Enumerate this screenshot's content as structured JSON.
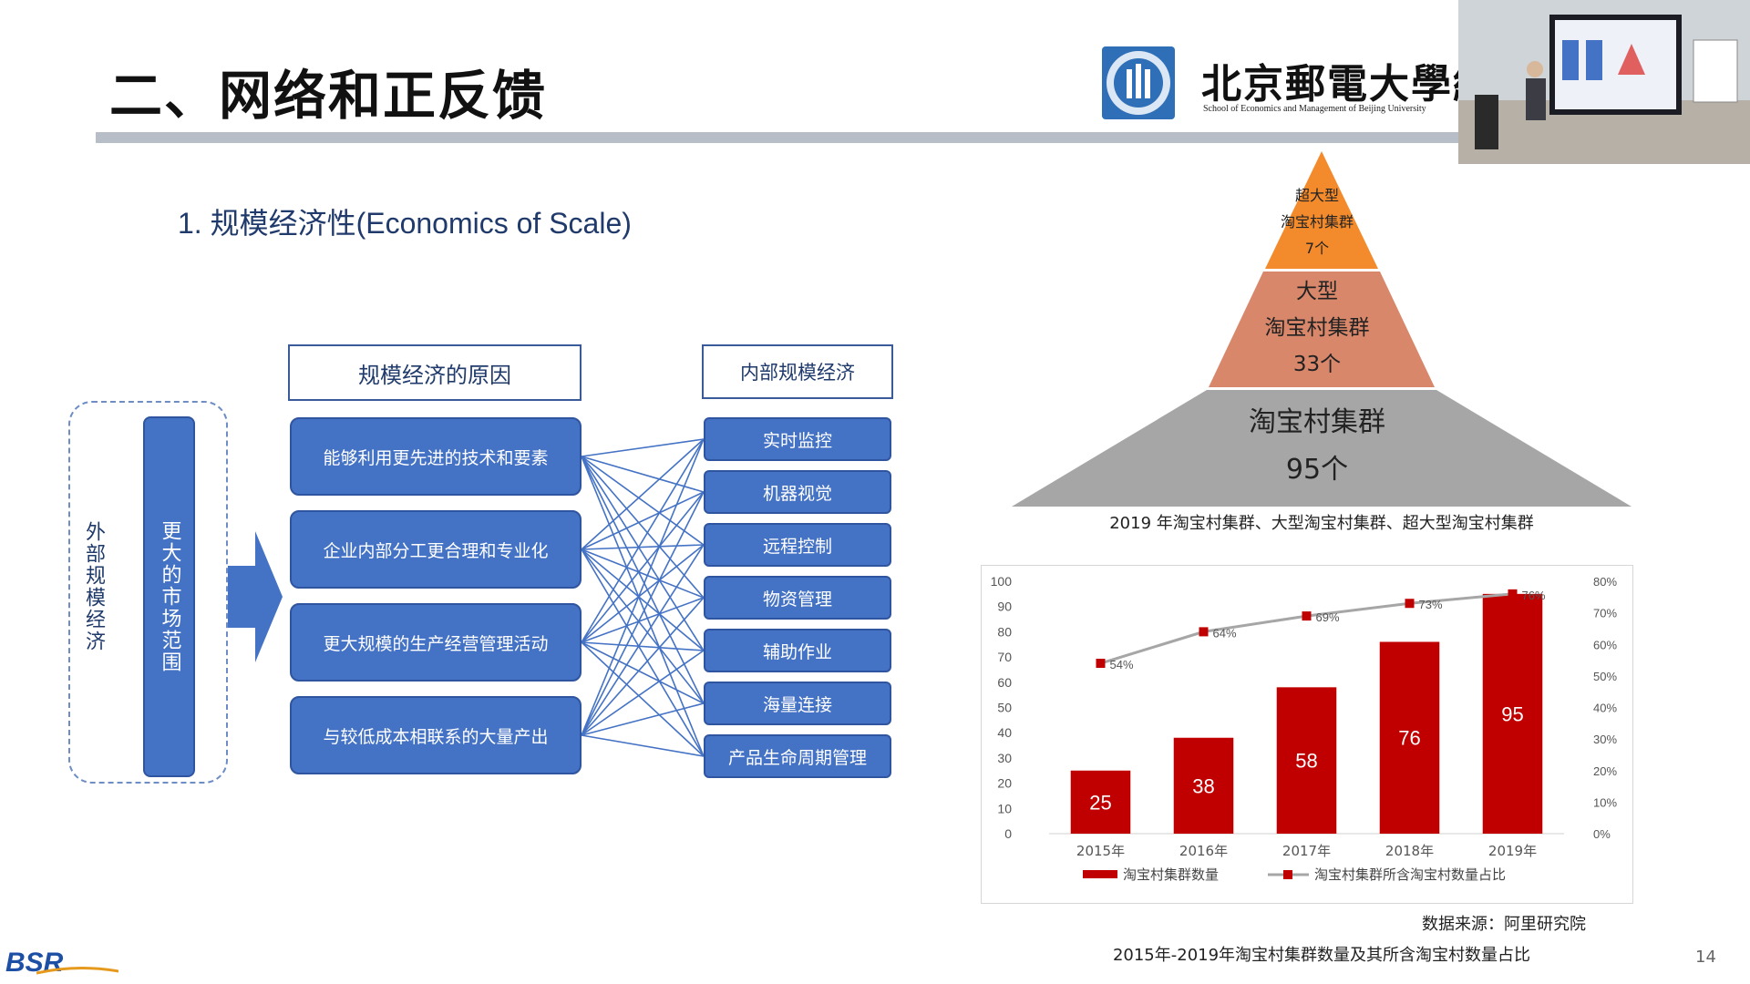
{
  "slide": {
    "title": "二、网络和正反馈",
    "subtitle": "1. 规模经济性(Economics of Scale)",
    "page_number": "14"
  },
  "header": {
    "university_name": "北京郵電大學經濟",
    "university_subtitle": "School of Economics and Management of Beijing University"
  },
  "diagram": {
    "external_label": "外部规模经济",
    "market_label": "更大的市场范围",
    "reasons_header": "规模经济的原因",
    "internal_header": "内部规模经济",
    "reasons": [
      "能够利用更先进的技术和要素",
      "企业内部分工更合理和专业化",
      "更大规模的生产经营管理活动",
      "与较低成本相联系的大量产出"
    ],
    "internal_items": [
      "实时监控",
      "机器视觉",
      "远程控制",
      "物资管理",
      "辅助作业",
      "海量连接",
      "产品生命周期管理"
    ]
  },
  "pyramid": {
    "levels": [
      {
        "name_line1": "超大型",
        "name_line2": "淘宝村集群",
        "count": "7个",
        "color": "#f38b2c"
      },
      {
        "name_line1": "大型",
        "name_line2": "淘宝村集群",
        "count": "33个",
        "color": "#d9876a"
      },
      {
        "name_line1": "淘宝村集群",
        "name_line2": "",
        "count": "95个",
        "color": "#a6a6a6"
      }
    ],
    "caption": "2019 年淘宝村集群、大型淘宝村集群、超大型淘宝村集群"
  },
  "chart_data": {
    "type": "bar",
    "title": "",
    "categories": [
      "2015年",
      "2016年",
      "2017年",
      "2018年",
      "2019年"
    ],
    "series": [
      {
        "name": "淘宝村集群数量",
        "type": "bar",
        "axis": "left",
        "values": [
          25,
          38,
          58,
          76,
          95
        ],
        "color": "#c00000"
      },
      {
        "name": "淘宝村集群所含淘宝村数量占比",
        "type": "line",
        "axis": "right",
        "values": [
          54,
          64,
          69,
          73,
          76
        ],
        "labels": [
          "54%",
          "64%",
          "69%",
          "73%",
          "76%"
        ],
        "color": "#a6a6a6",
        "marker_color": "#c00000"
      }
    ],
    "ylim": [
      0,
      100
    ],
    "yticks": [
      "100",
      "90",
      "80",
      "70",
      "60",
      "50",
      "40",
      "30",
      "20",
      "10",
      "0"
    ],
    "y2lim": [
      0,
      80
    ],
    "y2ticks": [
      "80%",
      "70%",
      "60%",
      "50%",
      "40%",
      "30%",
      "20%",
      "10%",
      "0%"
    ],
    "source": "数据来源：阿里研究院",
    "caption": "2015年-2019年淘宝村集群数量及其所含淘宝村数量占比"
  }
}
